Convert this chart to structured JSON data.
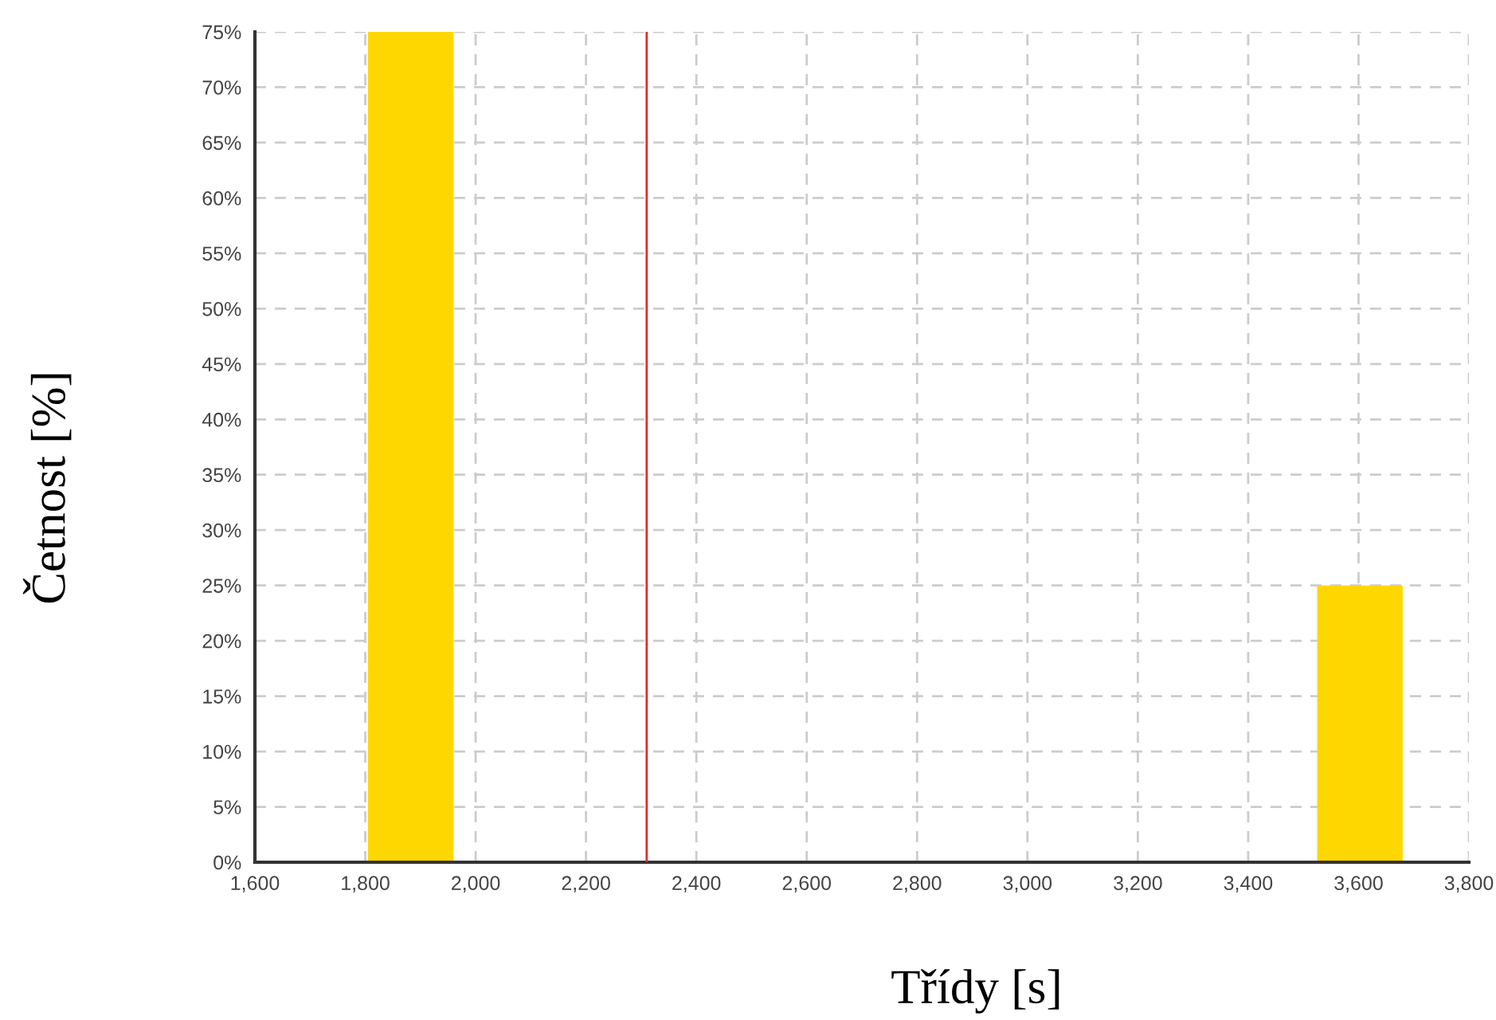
{
  "chart_data": {
    "type": "histogram",
    "xlabel": "Třídy [s]",
    "ylabel": "Četnost [%]",
    "bins": [
      1805,
      1960,
      3525,
      3680
    ],
    "values": [
      75,
      0,
      25
    ],
    "color": "#ffd700",
    "xlim": [
      1600,
      3800
    ],
    "xticks": [
      {
        "value": 1600,
        "label": "1,600"
      },
      {
        "value": 1800,
        "label": "1,800"
      },
      {
        "value": 2000,
        "label": "2,000"
      },
      {
        "value": 2200,
        "label": "2,200"
      },
      {
        "value": 2400,
        "label": "2,400"
      },
      {
        "value": 2600,
        "label": "2,600"
      },
      {
        "value": 2800,
        "label": "2,800"
      },
      {
        "value": 3000,
        "label": "3,000"
      },
      {
        "value": 3200,
        "label": "3,200"
      },
      {
        "value": 3400,
        "label": "3,400"
      },
      {
        "value": 3600,
        "label": "3,600"
      },
      {
        "value": 3800,
        "label": "3,800"
      }
    ],
    "ylim": [
      0,
      75
    ],
    "yticks": [
      {
        "value": 0,
        "label": "0%"
      },
      {
        "value": 5,
        "label": "5%"
      },
      {
        "value": 10,
        "label": "10%"
      },
      {
        "value": 15,
        "label": "15%"
      },
      {
        "value": 20,
        "label": "20%"
      },
      {
        "value": 25,
        "label": "25%"
      },
      {
        "value": 30,
        "label": "30%"
      },
      {
        "value": 35,
        "label": "35%"
      },
      {
        "value": 40,
        "label": "40%"
      },
      {
        "value": 45,
        "label": "45%"
      },
      {
        "value": 50,
        "label": "50%"
      },
      {
        "value": 55,
        "label": "55%"
      },
      {
        "value": 60,
        "label": "60%"
      },
      {
        "value": 65,
        "label": "65%"
      },
      {
        "value": 70,
        "label": "70%"
      },
      {
        "value": 75,
        "label": "75%"
      }
    ],
    "grid": true,
    "ref_lines": [
      {
        "axis": "x",
        "value": 2310,
        "color": "#e8262b"
      }
    ]
  }
}
